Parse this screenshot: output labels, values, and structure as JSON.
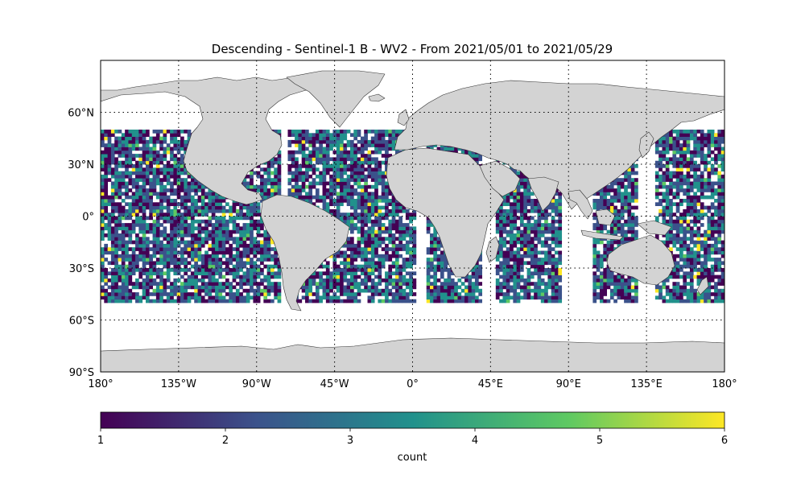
{
  "title": "Descending - Sentinel-1 B - WV2 - From 2021/05/01 to 2021/05/29",
  "map": {
    "lon_range": [
      -180,
      180
    ],
    "lat_range": [
      -90,
      90
    ],
    "lat_ticks": [
      {
        "value": 60,
        "label": "60°N"
      },
      {
        "value": 30,
        "label": "30°N"
      },
      {
        "value": 0,
        "label": "0°"
      },
      {
        "value": -30,
        "label": "30°S"
      },
      {
        "value": -60,
        "label": "60°S"
      },
      {
        "value": -90,
        "label": "90°S"
      }
    ],
    "lon_ticks": [
      {
        "value": -180,
        "label": "180°"
      },
      {
        "value": -135,
        "label": "135°W"
      },
      {
        "value": -90,
        "label": "90°W"
      },
      {
        "value": -45,
        "label": "45°W"
      },
      {
        "value": 0,
        "label": "0°"
      },
      {
        "value": 45,
        "label": "45°E"
      },
      {
        "value": 90,
        "label": "90°E"
      },
      {
        "value": 135,
        "label": "135°E"
      },
      {
        "value": 180,
        "label": "180°"
      }
    ],
    "gridlines": "dotted",
    "land_color": "#d3d3d3",
    "coastline_color": "#333333",
    "data_lat_range": [
      -50,
      50
    ],
    "cell_size_deg": 2
  },
  "colorbar": {
    "label": "count",
    "min": 1,
    "max": 6,
    "ticks": [
      1,
      2,
      3,
      4,
      5,
      6
    ],
    "colormap": "viridis",
    "colors": [
      "#440154",
      "#3b528b",
      "#21918c",
      "#5ec962",
      "#fde725"
    ]
  }
}
